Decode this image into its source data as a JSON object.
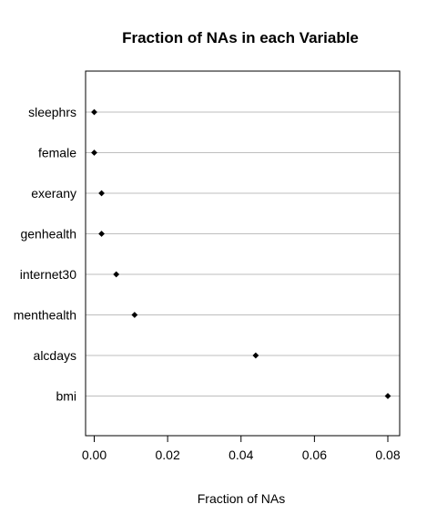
{
  "chart_data": {
    "type": "scatter",
    "title": "Fraction of NAs in each Variable",
    "xlabel": "Fraction of NAs",
    "ylabel": "",
    "categories": [
      "sleephrs",
      "female",
      "exerany",
      "genhealth",
      "internet30",
      "menthealth",
      "alcdays",
      "bmi"
    ],
    "values": [
      0.0,
      0.0,
      0.002,
      0.002,
      0.006,
      0.011,
      0.044,
      0.08
    ],
    "xlim": [
      -0.002,
      0.082
    ],
    "xticks": [
      0.0,
      0.02,
      0.04,
      0.06,
      0.08
    ],
    "xtick_labels": [
      "0.00",
      "0.02",
      "0.04",
      "0.06",
      "0.08"
    ],
    "grid": "horizontal lines at each category",
    "legend": "none",
    "marker": "filled diamond",
    "colors": {
      "points": "#000000",
      "grid": "#bebebe"
    }
  }
}
